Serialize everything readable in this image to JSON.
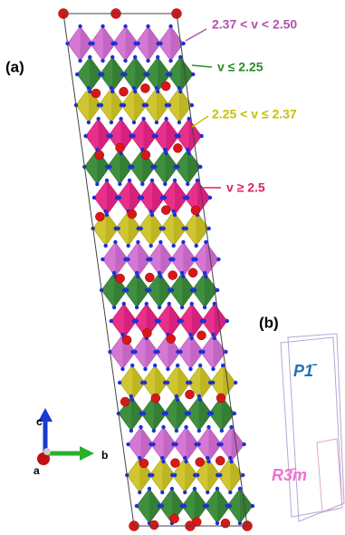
{
  "panel_a": {
    "label": "(a)",
    "legend": [
      "2.37 < v < 2.50",
      "v ≤ 2.25",
      "2.25 < v ≤ 2.37",
      "v ≥ 2.5"
    ],
    "axes": [
      "c",
      "b",
      "a"
    ]
  },
  "panel_b": {
    "label": "(b)",
    "phases": [
      "P1̄",
      "R3̄m"
    ]
  }
}
